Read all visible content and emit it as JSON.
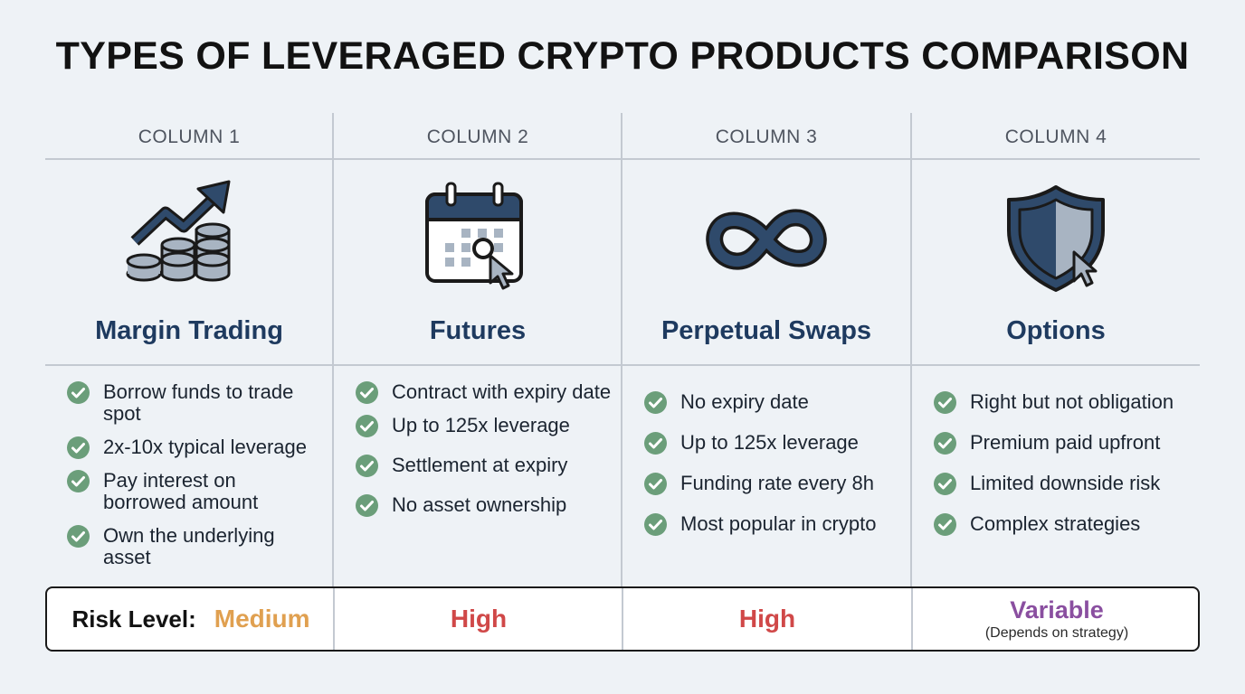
{
  "title": "TYPES OF LEVERAGED CRYPTO PRODUCTS COMPARISON",
  "columns": [
    {
      "header": "COLUMN 1",
      "icon": "chart-up-coins-icon",
      "name": "Margin Trading",
      "features": [
        "Borrow funds to trade spot",
        "2x-10x typical leverage",
        "Pay interest on borrowed amount",
        "Own the underlying asset"
      ],
      "risk": "Medium",
      "risk_color": "#e0a050"
    },
    {
      "header": "COLUMN 2",
      "icon": "calendar-cursor-icon",
      "name": "Futures",
      "features": [
        "Contract with expiry date",
        "Up to 125x leverage",
        "Settlement at expiry",
        "No asset ownership"
      ],
      "risk": "High",
      "risk_color": "#d04848"
    },
    {
      "header": "COLUMN 3",
      "icon": "infinity-icon",
      "name": "Perpetual Swaps",
      "features": [
        "No expiry date",
        "Up to 125x leverage",
        "Funding rate every 8h",
        "Most popular in crypto"
      ],
      "risk": "High",
      "risk_color": "#d04848"
    },
    {
      "header": "COLUMN 4",
      "icon": "shield-cursor-icon",
      "name": "Options",
      "features": [
        "Right but not obligation",
        "Premium paid upfront",
        "Limited downside risk",
        "Complex strategies"
      ],
      "risk": "Variable",
      "risk_note": "(Depends on strategy)",
      "risk_color": "#8a4fa0"
    }
  ],
  "risk_label": "Risk Level:",
  "colors": {
    "navy": "#2f4a6b",
    "check": "#6b9e7a",
    "grid": "#c3c9d1"
  }
}
